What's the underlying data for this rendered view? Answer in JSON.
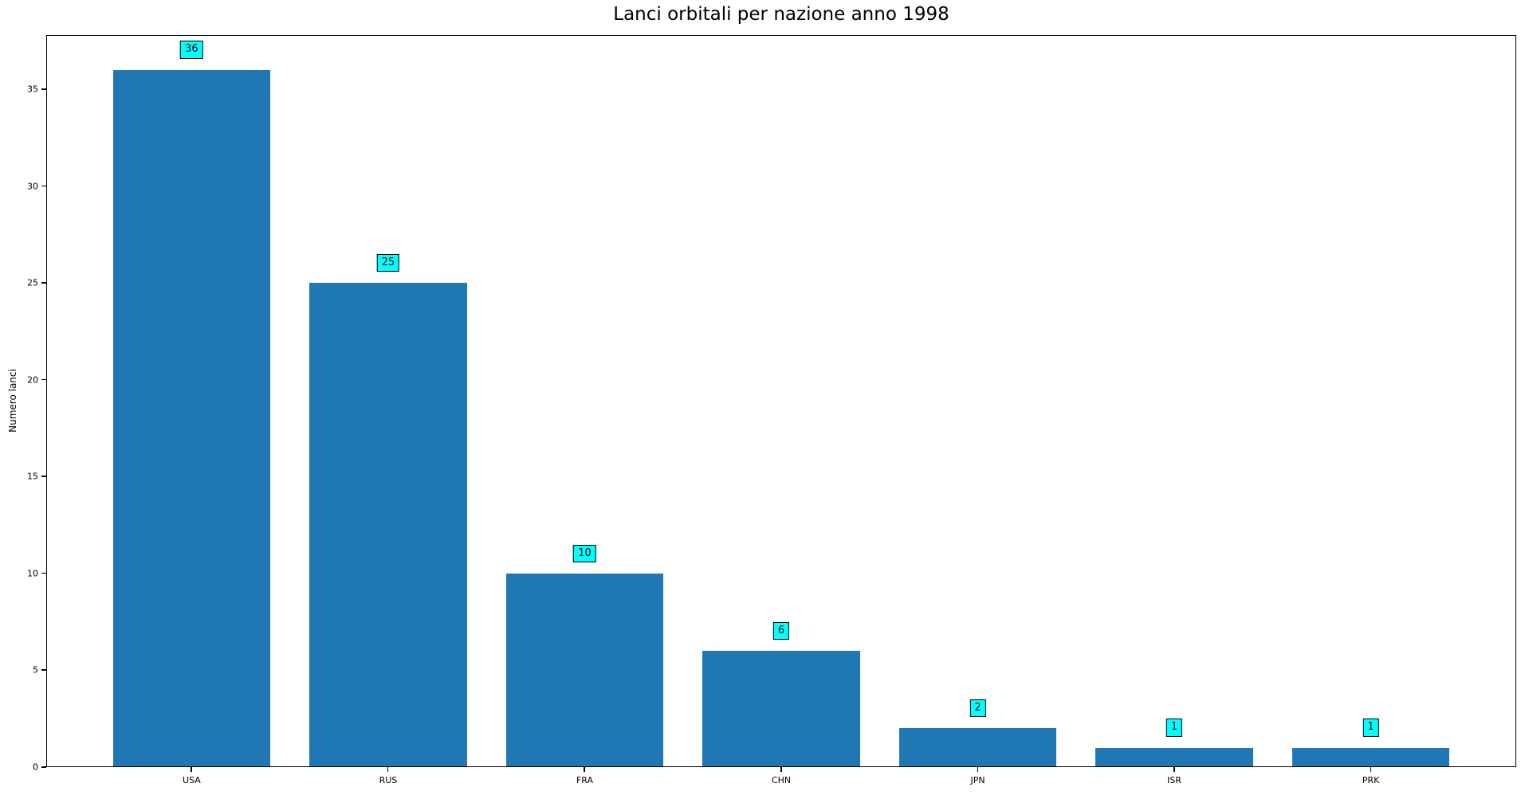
{
  "chart_data": {
    "type": "bar",
    "title": "Lanci orbitali per nazione anno 1998",
    "xlabel": "",
    "ylabel": "Numero lanci",
    "categories": [
      "USA",
      "RUS",
      "FRA",
      "CHN",
      "JPN",
      "ISR",
      "PRK"
    ],
    "values": [
      36,
      25,
      10,
      6,
      2,
      1,
      1
    ],
    "bar_labels": [
      "36",
      "25",
      "10",
      "6",
      "2",
      "1",
      "1"
    ],
    "yticks": [
      0,
      5,
      10,
      15,
      20,
      25,
      30,
      35
    ],
    "ylim": [
      0,
      37.8
    ],
    "xlim": [
      -0.74,
      6.74
    ],
    "bar_width": 0.8,
    "grid": false,
    "legend": "none",
    "colors": {
      "bar": "#1f77b4",
      "value_label_bg": "#00ffff",
      "value_label_border": "#000000",
      "axis": "#000000",
      "text": "#000000"
    }
  }
}
